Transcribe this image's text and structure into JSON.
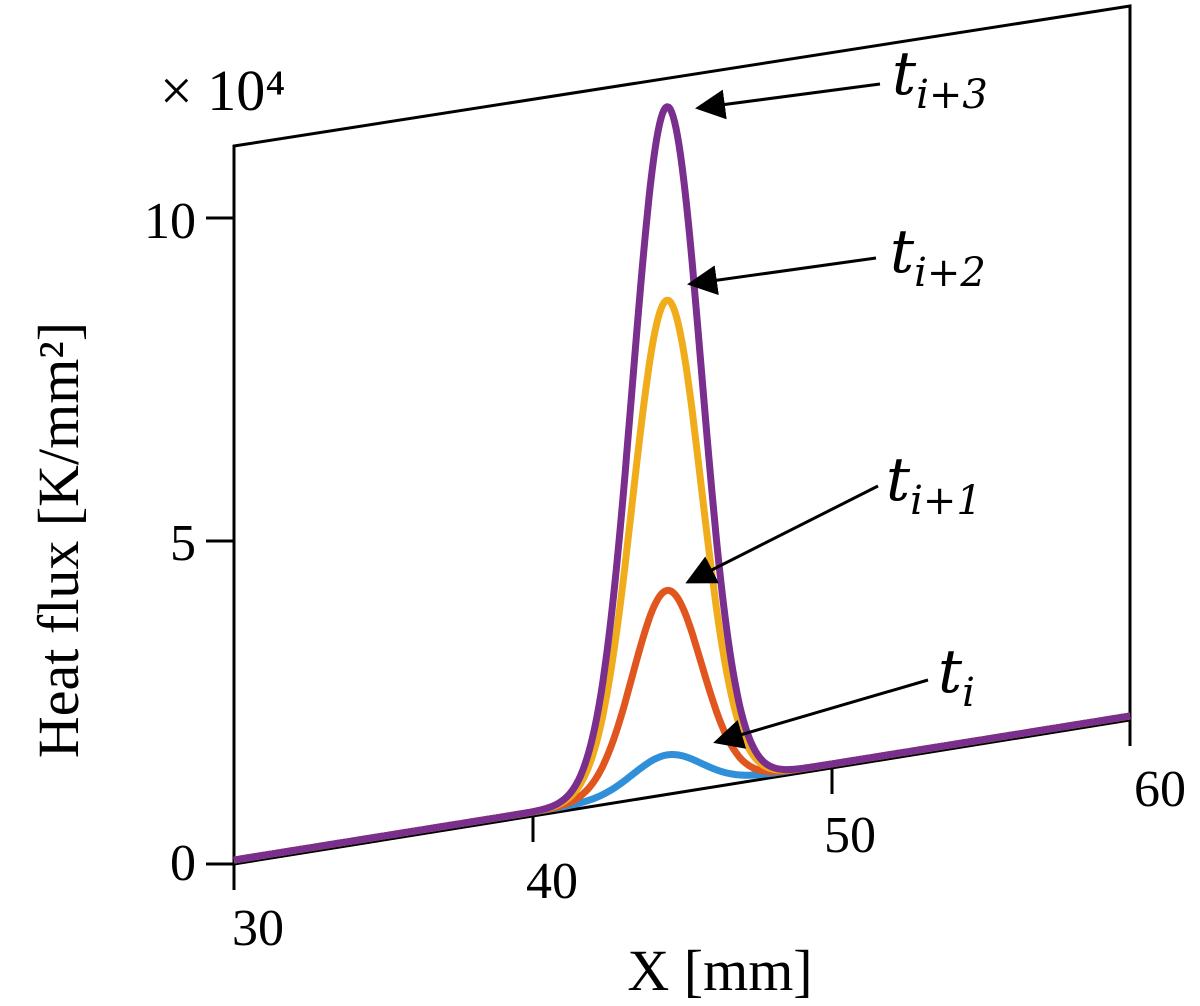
{
  "chart_data": {
    "type": "line",
    "title": "",
    "xlabel": "X [mm]",
    "ylabel": "Heat flux [K/mm²]",
    "y_multiplier": "× 10⁴",
    "xlim": [
      30,
      60
    ],
    "ylim": [
      0,
      11
    ],
    "x_ticks": [
      "30",
      "40",
      "50",
      "60"
    ],
    "y_ticks": [
      "0",
      "5",
      "10"
    ],
    "grid": false,
    "legend": "none",
    "series": [
      {
        "color": "#2f8fd8",
        "peak_x": 44.5,
        "peak_value": 0.55
      },
      {
        "color": "#e0561e",
        "peak_x": 44.5,
        "peak_value": 3.1
      },
      {
        "color": "#f0ac1a",
        "peak_x": 44.5,
        "peak_value": 7.6
      },
      {
        "color": "#7a2e8e",
        "peak_x": 44.5,
        "peak_value": 10.6
      }
    ],
    "annotations": [
      {
        "base": "t",
        "sub": "i",
        "series_index": 0
      },
      {
        "base": "t",
        "sub": "i+1",
        "series_index": 1
      },
      {
        "base": "t",
        "sub": "i+2",
        "series_index": 2
      },
      {
        "base": "t",
        "sub": "i+3",
        "series_index": 3
      }
    ]
  }
}
